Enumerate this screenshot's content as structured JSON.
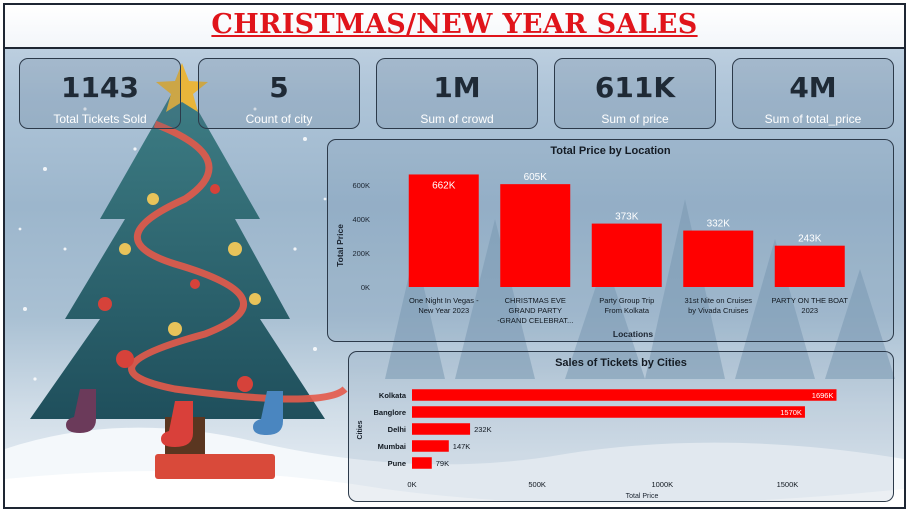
{
  "header": {
    "title": "CHRISTMAS/NEW YEAR SALES"
  },
  "kpis": [
    {
      "value": "1143",
      "label": "Total Tickets Sold"
    },
    {
      "value": "5",
      "label": "Count of city"
    },
    {
      "value": "1M",
      "label": "Sum of crowd"
    },
    {
      "value": "611K",
      "label": "Sum of price"
    },
    {
      "value": "4M",
      "label": "Sum of total_price"
    }
  ],
  "colors": {
    "title": "#e0141b",
    "bar": "#ff0000",
    "kpi_value": "#1f2a36"
  },
  "chart_data": [
    {
      "type": "bar",
      "title": "Total Price by Location",
      "xlabel": "Locations",
      "ylabel": "Total Price",
      "ylim": [
        0,
        700000
      ],
      "yticks": [
        0,
        200000,
        400000,
        600000
      ],
      "ytick_labels": [
        "0K",
        "200K",
        "400K",
        "600K"
      ],
      "categories": [
        [
          "One Night In Vegas -",
          "New Year 2023"
        ],
        [
          "CHRISTMAS EVE",
          "GRAND PARTY",
          "-GRAND CELEBRAT..."
        ],
        [
          "Party Group Trip",
          "From Kolkata"
        ],
        [
          "31st Nite on Cruises",
          "by Vivada Cruises"
        ],
        [
          "PARTY ON THE BOAT",
          "2023"
        ]
      ],
      "values": [
        662000,
        605000,
        373000,
        332000,
        243000
      ],
      "data_labels": [
        "662K",
        "605K",
        "373K",
        "332K",
        "243K"
      ],
      "legend": "none"
    },
    {
      "type": "bar",
      "orientation": "horizontal",
      "title": "Sales of Tickets by Cities",
      "xlabel": "Total Price",
      "ylabel": "Cities",
      "xlim": [
        0,
        1750000
      ],
      "xticks": [
        0,
        500000,
        1000000,
        1500000
      ],
      "xtick_labels": [
        "0K",
        "500K",
        "1000K",
        "1500K"
      ],
      "categories": [
        "Kolkata",
        "Banglore",
        "Delhi",
        "Mumbai",
        "Pune"
      ],
      "values": [
        1696000,
        1570000,
        232000,
        147000,
        79000
      ],
      "data_labels": [
        "1696K",
        "1570K",
        "232K",
        "147K",
        "79K"
      ],
      "legend": "none"
    }
  ]
}
